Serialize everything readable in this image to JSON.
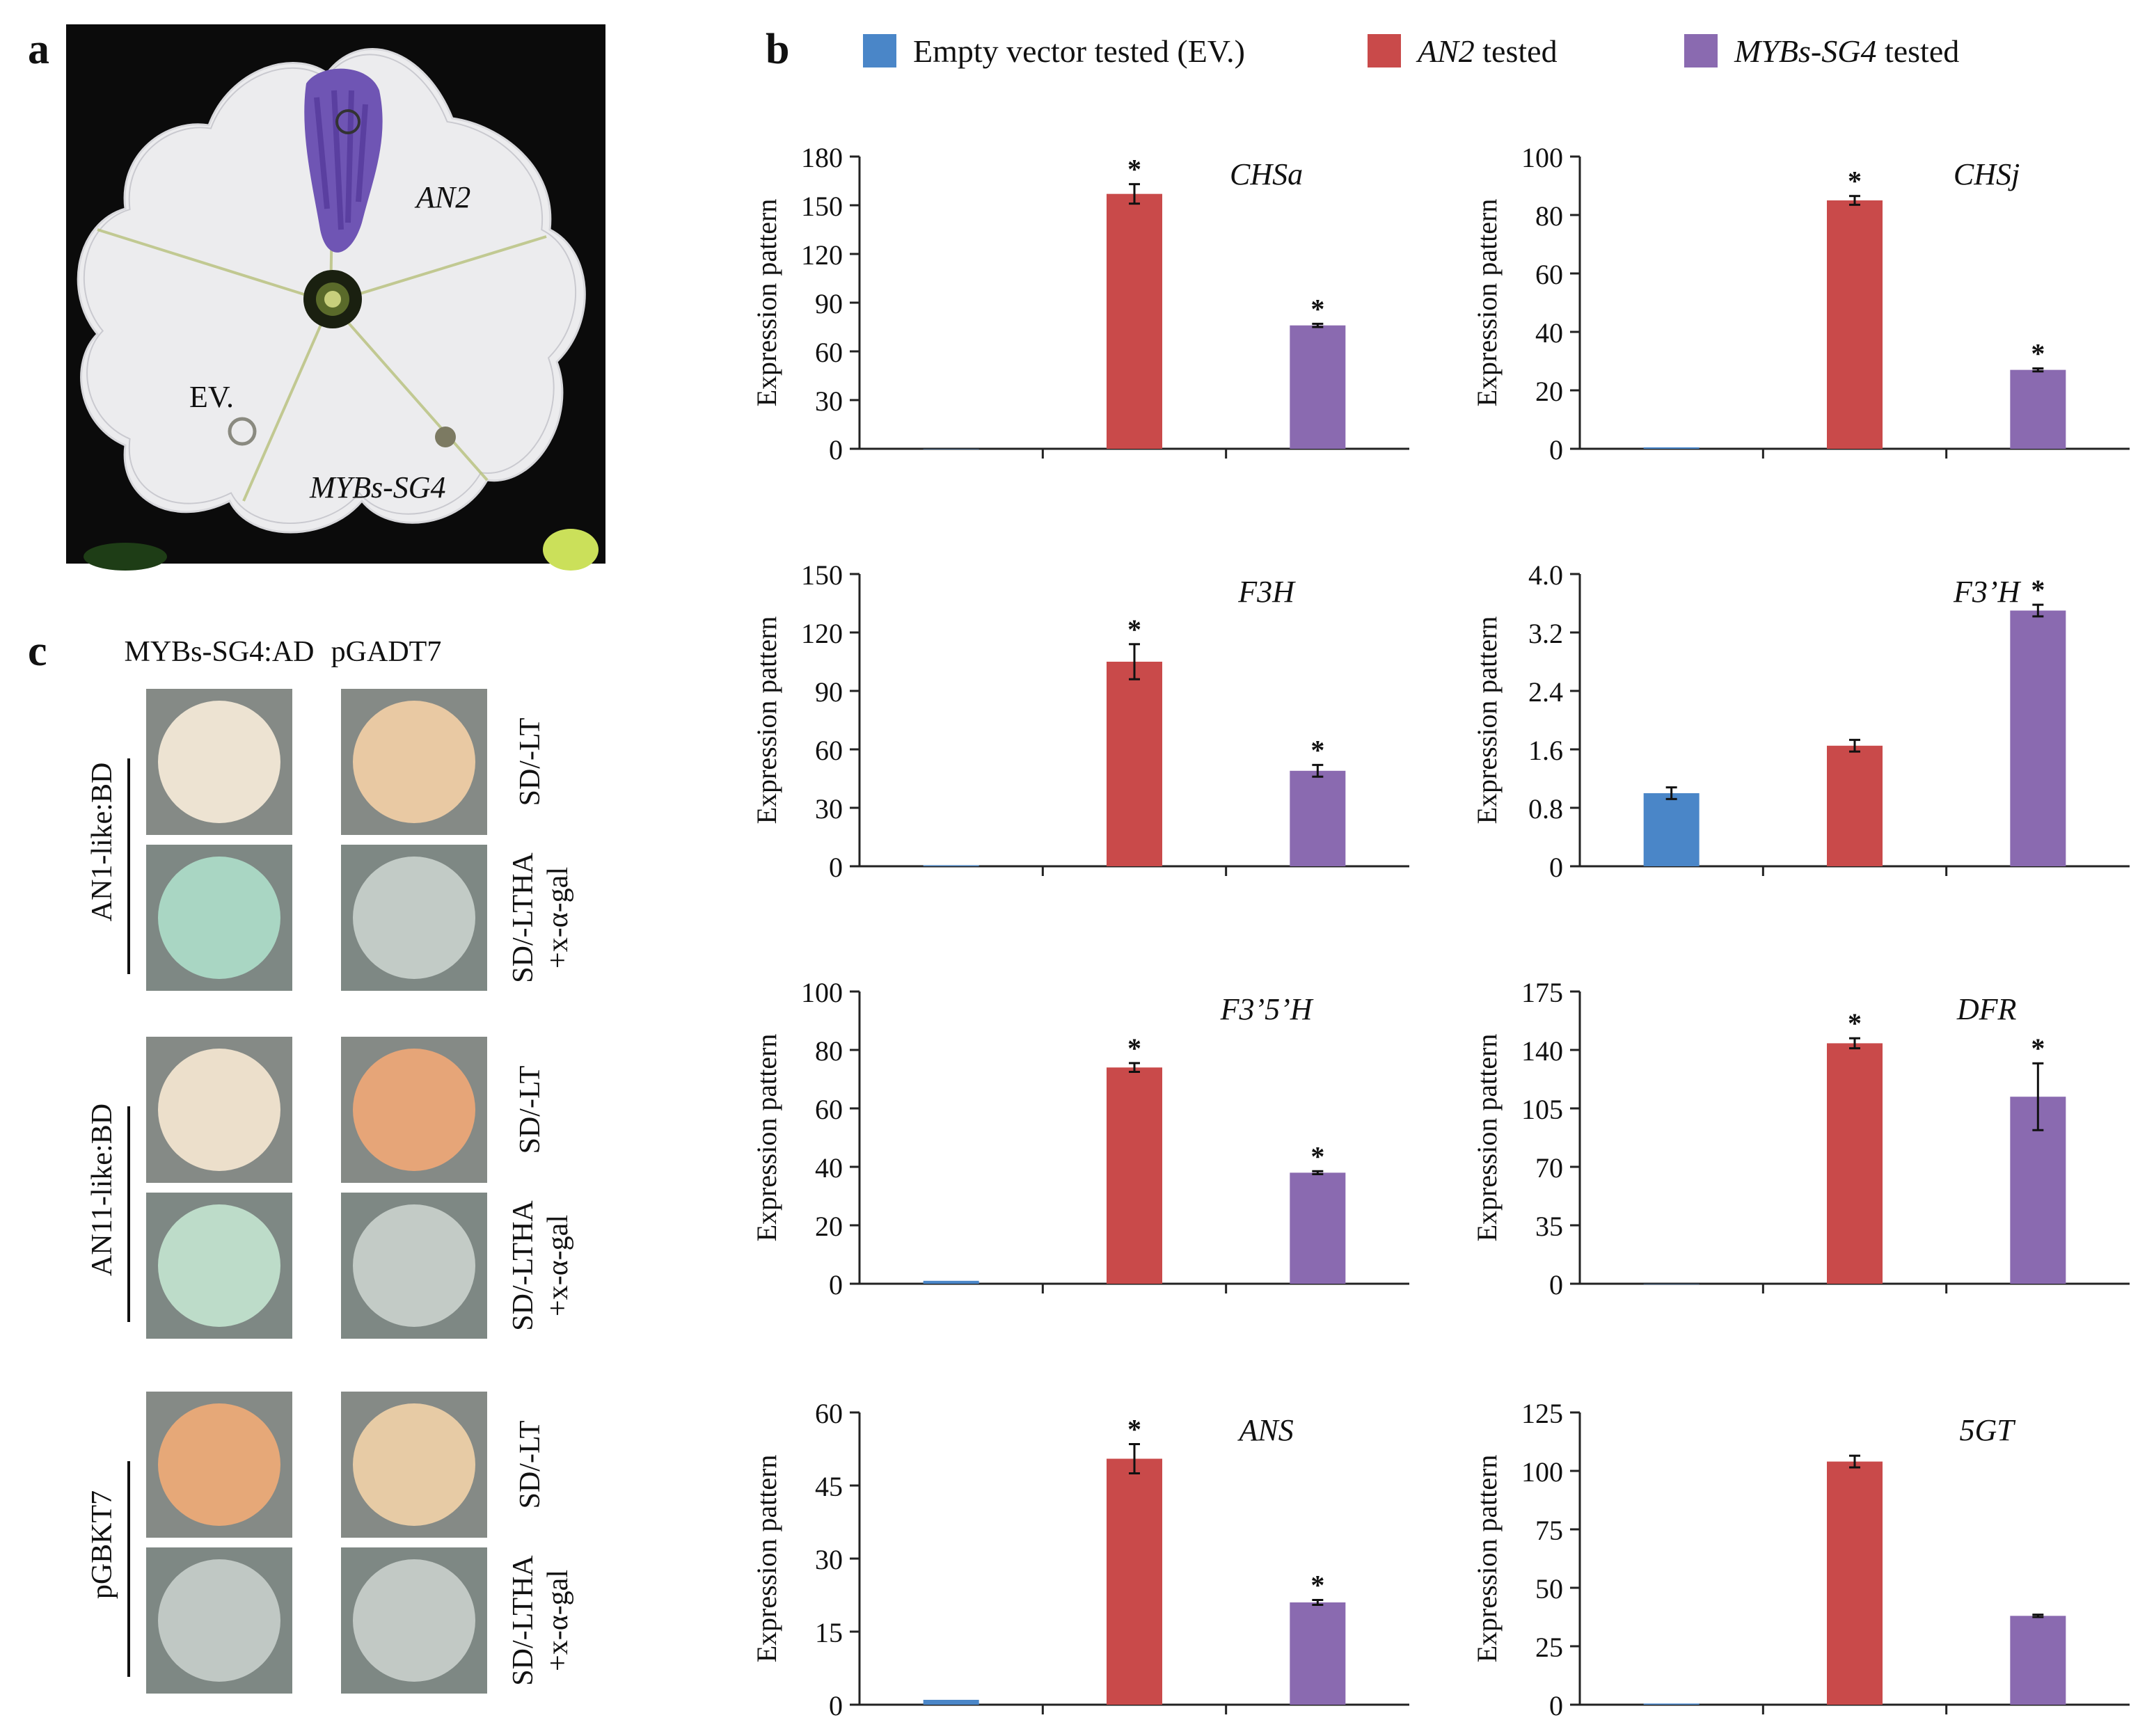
{
  "panels": {
    "a": "a",
    "b": "b",
    "c": "c"
  },
  "photo": {
    "labels": {
      "an2": "AN2",
      "ev": "EV.",
      "mybs": "MYBs-SG4"
    }
  },
  "legend": [
    {
      "key": "ev",
      "pre": "Empty vector tested (EV.)",
      "ital": "",
      "post": "",
      "color": "#4a86c8"
    },
    {
      "key": "an2",
      "pre": "",
      "ital": "AN2",
      "post": " tested",
      "color": "#c94a4a"
    },
    {
      "key": "mybs",
      "pre": "",
      "ital": "MYBs-SG4",
      "post": " tested",
      "color": "#8a6ab0"
    }
  ],
  "colors": {
    "ev": "#4a86c8",
    "an2": "#c94a4a",
    "mybs": "#8a6ab0"
  },
  "chart_data": [
    {
      "type": "bar",
      "title": "CHSa",
      "ylabel": "Expression pattern",
      "ylim": [
        0,
        180
      ],
      "ticks": [
        "0",
        "30",
        "60",
        "90",
        "120",
        "150",
        "180"
      ],
      "series": [
        {
          "name": "EV.",
          "values": [
            0
          ]
        },
        {
          "name": "AN2",
          "values": [
            157
          ],
          "err": [
            6
          ],
          "sig": "*"
        },
        {
          "name": "MYBs-SG4",
          "values": [
            76
          ],
          "err": [
            1
          ],
          "sig": "*"
        }
      ]
    },
    {
      "type": "bar",
      "title": "CHSj",
      "ylabel": "Expression pattern",
      "ylim": [
        0,
        100
      ],
      "ticks": [
        "0",
        "20",
        "40",
        "60",
        "80",
        "100"
      ],
      "series": [
        {
          "name": "EV.",
          "values": [
            0.5
          ]
        },
        {
          "name": "AN2",
          "values": [
            85
          ],
          "err": [
            1.5
          ],
          "sig": "*"
        },
        {
          "name": "MYBs-SG4",
          "values": [
            27
          ],
          "err": [
            0.5
          ],
          "sig": "*"
        }
      ]
    },
    {
      "type": "bar",
      "title": "F3H",
      "ylabel": "Expression pattern",
      "ylim": [
        0,
        150
      ],
      "ticks": [
        "0",
        "30",
        "60",
        "90",
        "120",
        "150"
      ],
      "series": [
        {
          "name": "EV.",
          "values": [
            0.5
          ]
        },
        {
          "name": "AN2",
          "values": [
            105
          ],
          "err": [
            9
          ],
          "sig": "*"
        },
        {
          "name": "MYBs-SG4",
          "values": [
            49
          ],
          "err": [
            3
          ],
          "sig": "*"
        }
      ]
    },
    {
      "type": "bar",
      "title": "F3’H",
      "ylabel": "Expression pattern",
      "ylim": [
        0,
        4.0
      ],
      "ticks": [
        "0",
        "0.8",
        "1.6",
        "2.4",
        "3.2",
        "4.0"
      ],
      "series": [
        {
          "name": "EV.",
          "values": [
            1.0
          ],
          "err": [
            0.08
          ]
        },
        {
          "name": "AN2",
          "values": [
            1.65
          ],
          "err": [
            0.08
          ]
        },
        {
          "name": "MYBs-SG4",
          "values": [
            3.5
          ],
          "err": [
            0.08
          ],
          "sig": "*"
        }
      ]
    },
    {
      "type": "bar",
      "title": "F3’5’H",
      "ylabel": "Expression pattern",
      "ylim": [
        0,
        100
      ],
      "ticks": [
        "0",
        "20",
        "40",
        "60",
        "80",
        "100"
      ],
      "series": [
        {
          "name": "EV.",
          "values": [
            1
          ]
        },
        {
          "name": "AN2",
          "values": [
            74
          ],
          "err": [
            1.5
          ],
          "sig": "*"
        },
        {
          "name": "MYBs-SG4",
          "values": [
            38
          ],
          "err": [
            0.5
          ],
          "sig": "*"
        }
      ]
    },
    {
      "type": "bar",
      "title": "DFR",
      "ylabel": "Expression pattern",
      "ylim": [
        0,
        175
      ],
      "ticks": [
        "0",
        "35",
        "70",
        "105",
        "140",
        "175"
      ],
      "series": [
        {
          "name": "EV.",
          "values": [
            0
          ]
        },
        {
          "name": "AN2",
          "values": [
            144
          ],
          "err": [
            3
          ],
          "sig": "*"
        },
        {
          "name": "MYBs-SG4",
          "values": [
            112
          ],
          "err": [
            20
          ],
          "sig": "*"
        }
      ]
    },
    {
      "type": "bar",
      "title": "ANS",
      "ylabel": "Expression pattern",
      "ylim": [
        0,
        60
      ],
      "ticks": [
        "0",
        "15",
        "30",
        "45",
        "60"
      ],
      "series": [
        {
          "name": "EV.",
          "values": [
            1
          ]
        },
        {
          "name": "AN2",
          "values": [
            50.5
          ],
          "err": [
            3
          ],
          "sig": "*"
        },
        {
          "name": "MYBs-SG4",
          "values": [
            21
          ],
          "err": [
            0.5
          ],
          "sig": "*"
        }
      ]
    },
    {
      "type": "bar",
      "title": "5GT",
      "ylabel": "Expression pattern",
      "ylim": [
        0,
        125
      ],
      "ticks": [
        "0",
        "25",
        "50",
        "75",
        "100",
        "125"
      ],
      "series": [
        {
          "name": "EV.",
          "values": [
            0.5
          ]
        },
        {
          "name": "AN2",
          "values": [
            104
          ],
          "err": [
            2.5
          ]
        },
        {
          "name": "MYBs-SG4",
          "values": [
            38
          ],
          "err": [
            0.5
          ]
        }
      ]
    }
  ],
  "yeast": {
    "col_headers": [
      "MYBs-SG4:AD",
      "pGADT7"
    ],
    "groups": [
      {
        "label": "AN1-like:BD",
        "media": [
          "SD/-LT",
          "SD/-LTHA",
          "+x-α-gal"
        ],
        "spots": [
          [
            "#ede3d2",
            "#e9c9a3"
          ],
          [
            "#a9d6c3",
            "#c2cbc6"
          ]
        ]
      },
      {
        "label": "AN11-like:BD",
        "media": [
          "SD/-LT",
          "SD/-LTHA",
          "+x-α-gal"
        ],
        "spots": [
          [
            "#ecdfcb",
            "#e6a578"
          ],
          [
            "#bddcc9",
            "#c3cbc6"
          ]
        ]
      },
      {
        "label": "pGBKT7",
        "media": [
          "SD/-LT",
          "SD/-LTHA",
          "+x-α-gal"
        ],
        "spots": [
          [
            "#e6a878",
            "#e7cba5"
          ],
          [
            "#c0c8c4",
            "#c2c9c5"
          ]
        ]
      }
    ]
  }
}
